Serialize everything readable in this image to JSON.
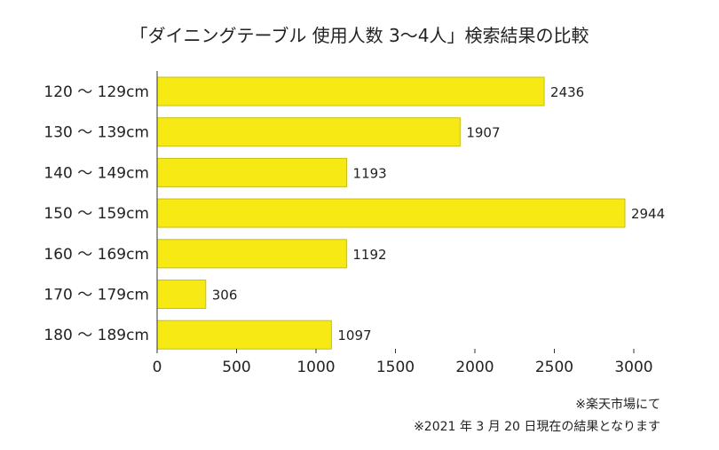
{
  "chart_data": {
    "type": "bar",
    "orientation": "horizontal",
    "title": "「ダイニングテーブル 使用人数 3～4人」検索結果の比較",
    "categories": [
      "120 ～ 129cm",
      "130 ～ 139cm",
      "140 ～ 149cm",
      "150 ～ 159cm",
      "160 ～ 169cm",
      "170 ～ 179cm",
      "180 ～ 189cm"
    ],
    "values": [
      2436,
      1907,
      1193,
      2944,
      1192,
      306,
      1097
    ],
    "xlim": [
      0,
      3000
    ],
    "xticks": [
      0,
      500,
      1000,
      1500,
      2000,
      2500,
      3000
    ],
    "xlabel": "",
    "ylabel": "",
    "grid": false,
    "bar_color": "#F7EA14",
    "bar_edge_color": "#C9BE12"
  },
  "notes": [
    "※楽天市場にて",
    "※2021 年 3 月 20 日現在の結果となります"
  ]
}
